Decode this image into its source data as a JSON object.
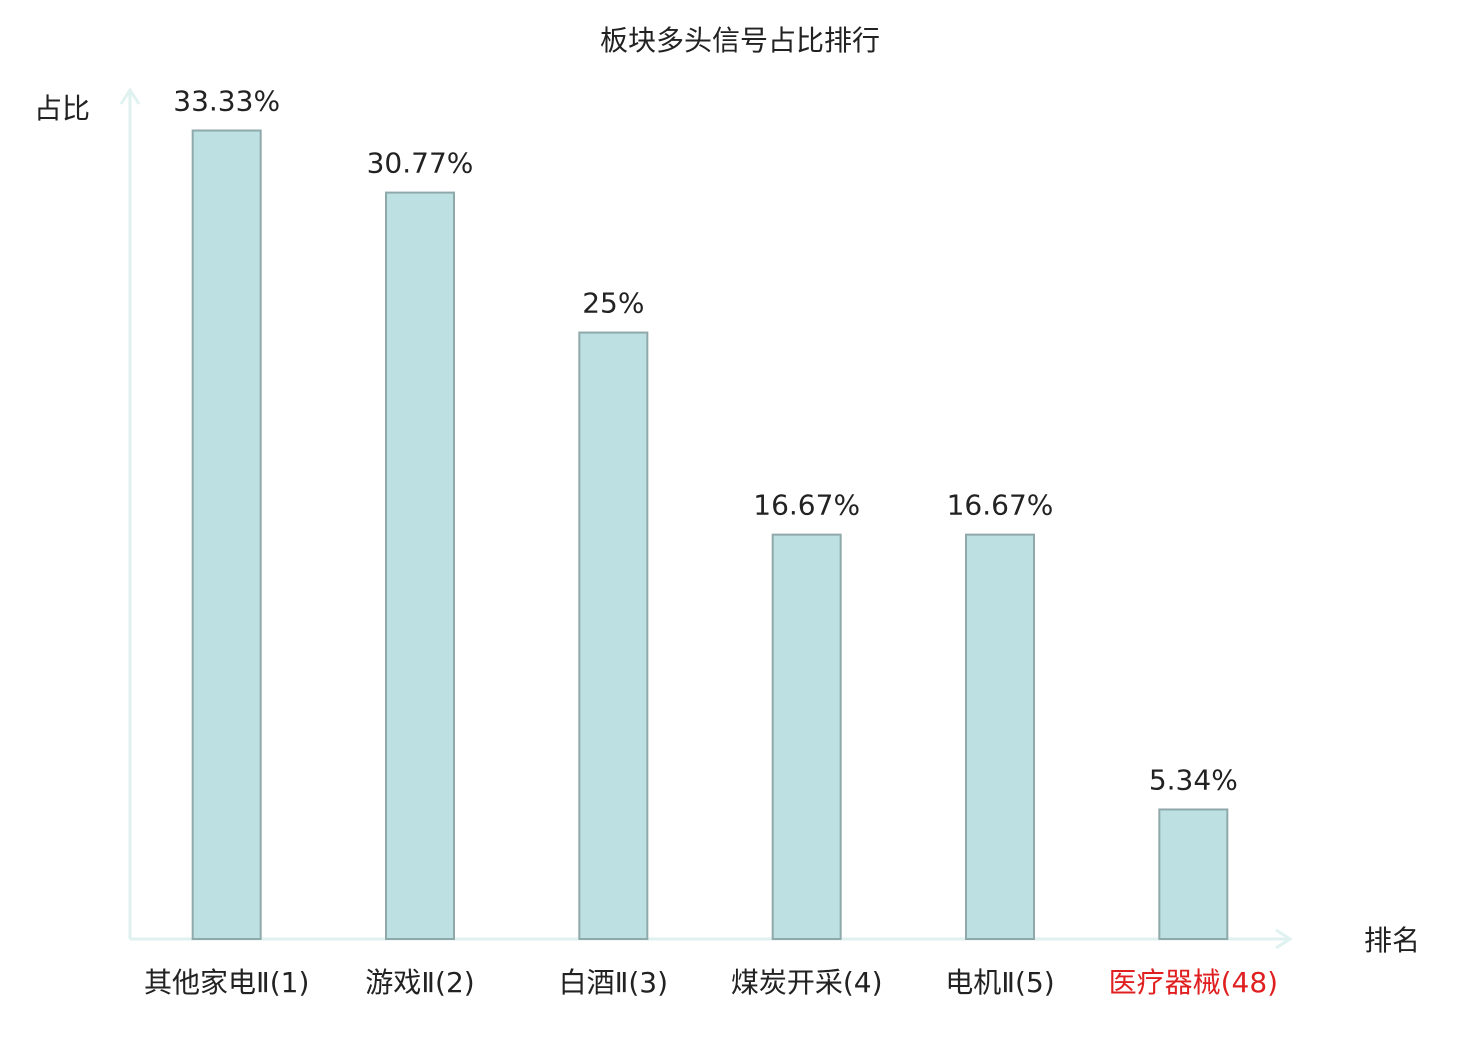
{
  "chart_data": {
    "type": "bar",
    "title": "板块多头信号占比排行",
    "y_label": "占比",
    "x_label": "排名",
    "categories": [
      "其他家电Ⅱ(1)",
      "游戏Ⅱ(2)",
      "白酒Ⅱ(3)",
      "煤炭开采(4)",
      "电机Ⅱ(5)",
      "医疗器械(48)"
    ],
    "label_colors": [
      "#222222",
      "#222222",
      "#222222",
      "#222222",
      "#222222",
      "#e02020"
    ],
    "values": [
      33.33,
      30.77,
      25,
      16.67,
      16.67,
      5.34
    ],
    "value_labels": [
      "33.33%",
      "30.77%",
      "25%",
      "16.67%",
      "16.67%",
      "5.34%"
    ],
    "color": "#bde0e3",
    "edge_color": "#8fa8aa",
    "axis_color": "#dff2ef",
    "ylim": [
      0,
      35
    ],
    "grid": false
  }
}
